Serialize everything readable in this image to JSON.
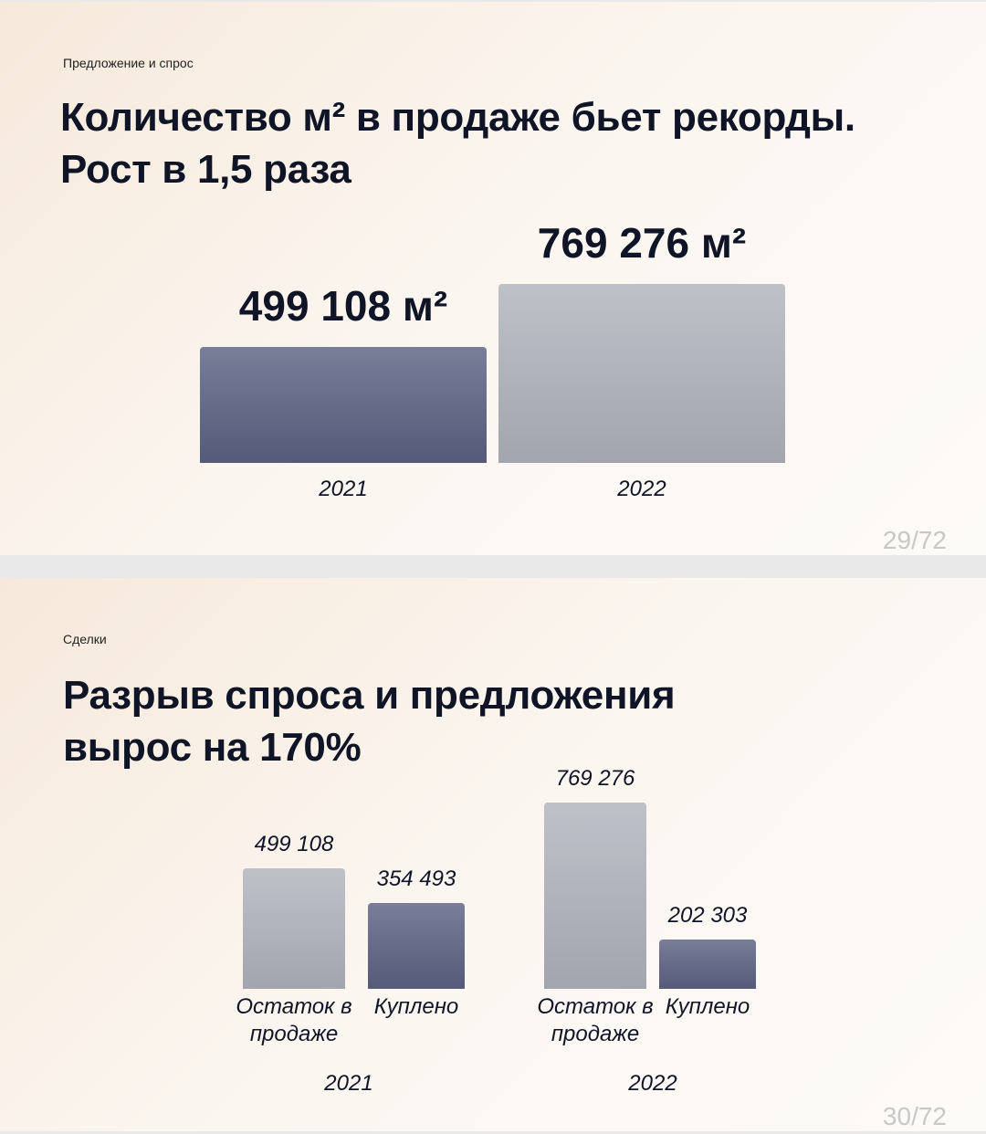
{
  "slides": [
    {
      "section": "Предложение и спрос",
      "page": "29/72"
    },
    {
      "section": "Сделки",
      "page": "30/72"
    }
  ],
  "chart_data": [
    {
      "type": "bar",
      "title": "Количество м² в продаже бьет рекорды. Рост в 1,5 раза",
      "categories": [
        "2021",
        "2022"
      ],
      "values": [
        499108,
        769276
      ],
      "value_labels": [
        "499 108 м²",
        "769 276 м²"
      ],
      "colors": [
        "#5b6282",
        "#b1b3bd"
      ]
    },
    {
      "type": "grouped-bar",
      "title": "Разрыв спроса и предложения вырос на 170%",
      "categories": [
        "2021",
        "2022"
      ],
      "series": [
        {
          "name": "Остаток в продаже",
          "color": "#b1b3bd",
          "values": [
            499108,
            769276
          ],
          "value_labels": [
            "499 108",
            "769 276"
          ]
        },
        {
          "name": "Куплено",
          "color": "#5b6282",
          "values": [
            354493,
            202303
          ],
          "value_labels": [
            "354 493",
            "202 303"
          ]
        }
      ]
    }
  ]
}
